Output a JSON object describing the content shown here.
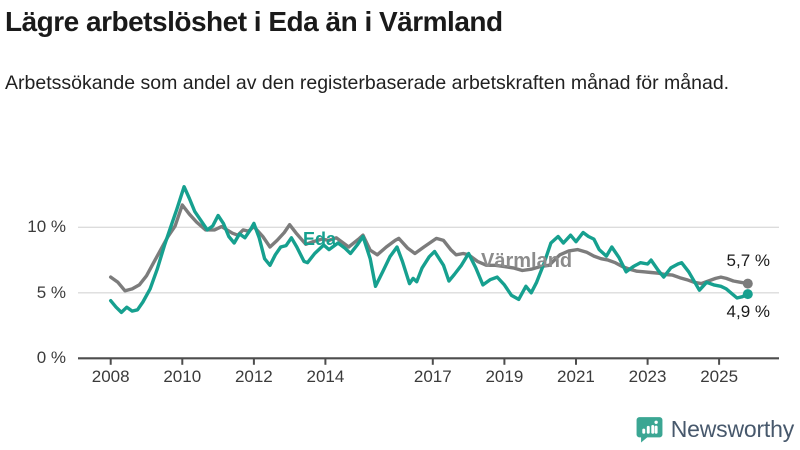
{
  "title": "Lägre arbetslöshet i Eda än i Värmland",
  "subtitle": "Arbetssökande som andel av den registerbaserade arbetskraften månad för månad.",
  "colors": {
    "eda": "#16a08f",
    "varmland": "#7c7c7c",
    "varmland_label": "#8c8c8c",
    "grid": "#dcdcdc",
    "axis": "#4d4d4d",
    "logo_teal": "#3ba693",
    "logo_text": "#47586c"
  },
  "logo": {
    "text": "Newsworthy"
  },
  "chart_data": {
    "type": "line",
    "title": "Lägre arbetslöshet i Eda än i Värmland",
    "subtitle": "Arbetssökande som andel av den registerbaserade arbetskraften månad för månad.",
    "unit": "%",
    "x_axis": {
      "range": [
        2007.1,
        2026.7
      ],
      "ticks": [
        2008,
        2010,
        2012,
        2014,
        2017,
        2019,
        2021,
        2023,
        2025
      ]
    },
    "y_axis": {
      "range": [
        0,
        14.5
      ],
      "ticks": [
        {
          "value": 0,
          "label": "0 %"
        },
        {
          "value": 5,
          "label": "5 %"
        },
        {
          "value": 10,
          "label": "10 %"
        }
      ],
      "gridline_values": [
        5,
        10
      ]
    },
    "legend_position": "inline-labels",
    "series": [
      {
        "name": "Eda",
        "color": "#16a08f",
        "end_label": "4,9 %",
        "end_value": 4.9,
        "points": [
          [
            2008.0,
            4.4
          ],
          [
            2008.15,
            3.9
          ],
          [
            2008.3,
            3.5
          ],
          [
            2008.45,
            3.9
          ],
          [
            2008.6,
            3.6
          ],
          [
            2008.75,
            3.7
          ],
          [
            2008.9,
            4.3
          ],
          [
            2009.1,
            5.3
          ],
          [
            2009.3,
            6.8
          ],
          [
            2009.5,
            8.6
          ],
          [
            2009.7,
            10.2
          ],
          [
            2009.85,
            11.4
          ],
          [
            2010.05,
            13.1
          ],
          [
            2010.2,
            12.2
          ],
          [
            2010.35,
            11.2
          ],
          [
            2010.55,
            10.4
          ],
          [
            2010.7,
            9.8
          ],
          [
            2010.85,
            10.1
          ],
          [
            2011.0,
            10.9
          ],
          [
            2011.15,
            10.3
          ],
          [
            2011.3,
            9.3
          ],
          [
            2011.45,
            8.8
          ],
          [
            2011.6,
            9.5
          ],
          [
            2011.75,
            9.2
          ],
          [
            2011.9,
            9.8
          ],
          [
            2012.0,
            10.3
          ],
          [
            2012.15,
            9.2
          ],
          [
            2012.3,
            7.6
          ],
          [
            2012.45,
            7.1
          ],
          [
            2012.6,
            7.9
          ],
          [
            2012.75,
            8.5
          ],
          [
            2012.9,
            8.6
          ],
          [
            2013.05,
            9.2
          ],
          [
            2013.2,
            8.5
          ],
          [
            2013.4,
            7.4
          ],
          [
            2013.5,
            7.3
          ],
          [
            2013.7,
            8.0
          ],
          [
            2013.95,
            8.65
          ],
          [
            2014.1,
            8.3
          ],
          [
            2014.35,
            8.8
          ],
          [
            2014.55,
            8.4
          ],
          [
            2014.7,
            8.0
          ],
          [
            2014.9,
            8.7
          ],
          [
            2015.05,
            9.3
          ],
          [
            2015.25,
            7.6
          ],
          [
            2015.4,
            5.5
          ],
          [
            2015.6,
            6.6
          ],
          [
            2015.8,
            7.75
          ],
          [
            2016.0,
            8.5
          ],
          [
            2016.15,
            7.4
          ],
          [
            2016.35,
            5.7
          ],
          [
            2016.45,
            6.1
          ],
          [
            2016.55,
            5.85
          ],
          [
            2016.7,
            6.9
          ],
          [
            2016.9,
            7.75
          ],
          [
            2017.05,
            8.15
          ],
          [
            2017.3,
            7.1
          ],
          [
            2017.45,
            5.9
          ],
          [
            2017.6,
            6.4
          ],
          [
            2017.8,
            7.1
          ],
          [
            2018.0,
            8.0
          ],
          [
            2018.2,
            6.9
          ],
          [
            2018.4,
            5.6
          ],
          [
            2018.6,
            6.0
          ],
          [
            2018.8,
            6.2
          ],
          [
            2019.0,
            5.6
          ],
          [
            2019.2,
            4.8
          ],
          [
            2019.4,
            4.5
          ],
          [
            2019.6,
            5.5
          ],
          [
            2019.75,
            5.0
          ],
          [
            2019.9,
            5.8
          ],
          [
            2020.1,
            7.2
          ],
          [
            2020.3,
            8.8
          ],
          [
            2020.5,
            9.3
          ],
          [
            2020.65,
            8.8
          ],
          [
            2020.85,
            9.4
          ],
          [
            2021.0,
            8.9
          ],
          [
            2021.2,
            9.6
          ],
          [
            2021.35,
            9.3
          ],
          [
            2021.5,
            9.1
          ],
          [
            2021.65,
            8.3
          ],
          [
            2021.85,
            7.8
          ],
          [
            2022.0,
            8.5
          ],
          [
            2022.2,
            7.7
          ],
          [
            2022.4,
            6.6
          ],
          [
            2022.6,
            7.0
          ],
          [
            2022.8,
            7.3
          ],
          [
            2023.0,
            7.2
          ],
          [
            2023.1,
            7.5
          ],
          [
            2023.3,
            6.7
          ],
          [
            2023.45,
            6.2
          ],
          [
            2023.65,
            6.9
          ],
          [
            2023.85,
            7.2
          ],
          [
            2023.95,
            7.3
          ],
          [
            2024.15,
            6.6
          ],
          [
            2024.45,
            5.2
          ],
          [
            2024.65,
            5.8
          ],
          [
            2024.85,
            5.6
          ],
          [
            2025.05,
            5.5
          ],
          [
            2025.2,
            5.3
          ],
          [
            2025.5,
            4.6
          ],
          [
            2025.65,
            4.7
          ],
          [
            2025.8,
            4.9
          ]
        ]
      },
      {
        "name": "Värmland",
        "color": "#7c7c7c",
        "end_label": "5,7 %",
        "end_value": 5.7,
        "points": [
          [
            2008.0,
            6.2
          ],
          [
            2008.2,
            5.8
          ],
          [
            2008.4,
            5.15
          ],
          [
            2008.6,
            5.3
          ],
          [
            2008.8,
            5.6
          ],
          [
            2009.0,
            6.3
          ],
          [
            2009.2,
            7.3
          ],
          [
            2009.4,
            8.3
          ],
          [
            2009.6,
            9.3
          ],
          [
            2009.8,
            10.1
          ],
          [
            2010.0,
            11.7
          ],
          [
            2010.2,
            11.0
          ],
          [
            2010.4,
            10.4
          ],
          [
            2010.65,
            9.8
          ],
          [
            2010.9,
            9.8
          ],
          [
            2011.1,
            10.05
          ],
          [
            2011.4,
            9.55
          ],
          [
            2011.55,
            9.4
          ],
          [
            2011.7,
            9.8
          ],
          [
            2011.85,
            9.7
          ],
          [
            2012.0,
            10.05
          ],
          [
            2012.25,
            9.3
          ],
          [
            2012.45,
            8.5
          ],
          [
            2012.65,
            9.0
          ],
          [
            2012.85,
            9.6
          ],
          [
            2013.0,
            10.2
          ],
          [
            2013.2,
            9.5
          ],
          [
            2013.45,
            8.7
          ],
          [
            2013.65,
            8.9
          ],
          [
            2013.9,
            9.1
          ],
          [
            2014.1,
            9.0
          ],
          [
            2014.3,
            9.2
          ],
          [
            2014.65,
            8.5
          ],
          [
            2014.95,
            9.15
          ],
          [
            2015.05,
            9.4
          ],
          [
            2015.25,
            8.25
          ],
          [
            2015.45,
            7.9
          ],
          [
            2015.7,
            8.5
          ],
          [
            2015.95,
            9.0
          ],
          [
            2016.05,
            9.15
          ],
          [
            2016.3,
            8.4
          ],
          [
            2016.5,
            8.0
          ],
          [
            2016.75,
            8.5
          ],
          [
            2017.1,
            9.15
          ],
          [
            2017.3,
            9.0
          ],
          [
            2017.5,
            8.3
          ],
          [
            2017.65,
            7.9
          ],
          [
            2017.85,
            8.0
          ],
          [
            2018.0,
            7.9
          ],
          [
            2018.25,
            7.4
          ],
          [
            2018.5,
            7.1
          ],
          [
            2018.75,
            7.1
          ],
          [
            2019.0,
            7.0
          ],
          [
            2019.25,
            6.9
          ],
          [
            2019.5,
            6.7
          ],
          [
            2019.75,
            6.8
          ],
          [
            2020.0,
            7.0
          ],
          [
            2020.25,
            7.1
          ],
          [
            2020.55,
            7.9
          ],
          [
            2020.8,
            8.2
          ],
          [
            2021.05,
            8.3
          ],
          [
            2021.3,
            8.1
          ],
          [
            2021.5,
            7.8
          ],
          [
            2021.7,
            7.6
          ],
          [
            2021.9,
            7.5
          ],
          [
            2022.1,
            7.3
          ],
          [
            2022.3,
            7.0
          ],
          [
            2022.5,
            6.8
          ],
          [
            2022.7,
            6.65
          ],
          [
            2022.9,
            6.6
          ],
          [
            2023.1,
            6.55
          ],
          [
            2023.3,
            6.5
          ],
          [
            2023.5,
            6.4
          ],
          [
            2023.7,
            6.35
          ],
          [
            2023.9,
            6.15
          ],
          [
            2024.1,
            6.0
          ],
          [
            2024.3,
            5.8
          ],
          [
            2024.5,
            5.7
          ],
          [
            2024.7,
            5.9
          ],
          [
            2024.9,
            6.1
          ],
          [
            2025.05,
            6.2
          ],
          [
            2025.2,
            6.1
          ],
          [
            2025.4,
            5.9
          ],
          [
            2025.6,
            5.8
          ],
          [
            2025.8,
            5.7
          ]
        ]
      }
    ]
  }
}
